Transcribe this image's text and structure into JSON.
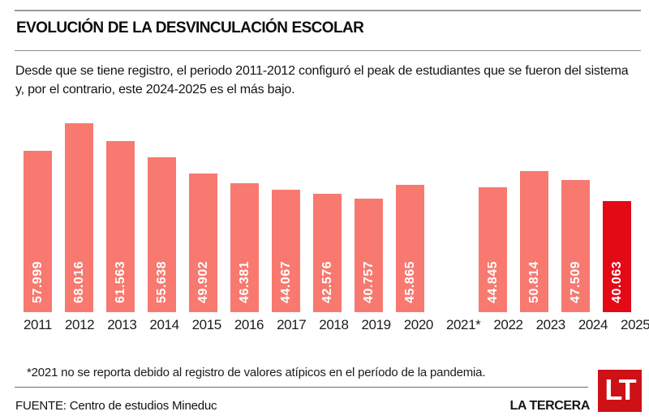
{
  "header": {
    "title": "EVOLUCIÓN DE LA DESVINCULACIÓN ESCOLAR",
    "subtitle": "Desde que se tiene registro, el periodo 2011-2012 configuró el peak de estudiantes que se fueron del sistema y, por el contrario, este 2024-2025 es el más bajo."
  },
  "chart_data": {
    "type": "bar",
    "categories": [
      "2011",
      "2012",
      "2013",
      "2014",
      "2015",
      "2016",
      "2017",
      "2018",
      "2019",
      "2020",
      "2021*",
      "2022",
      "2023",
      "2024",
      "2025"
    ],
    "values": [
      57999,
      68016,
      61563,
      55638,
      49902,
      46381,
      44067,
      42576,
      40757,
      45865,
      null,
      44845,
      50814,
      47509,
      40063
    ],
    "value_labels": [
      "57.999",
      "68.016",
      "61.563",
      "55.638",
      "49.902",
      "46.381",
      "44.067",
      "42.576",
      "40.757",
      "45.865",
      "",
      "44.845",
      "50.814",
      "47.509",
      "40.063"
    ],
    "title": "EVOLUCIÓN DE LA DESVINCULACIÓN ESCOLAR",
    "xlabel": "",
    "ylabel": "",
    "ylim": [
      0,
      68016
    ],
    "grid": false,
    "legend": "none",
    "bar_color": "#f7796f",
    "highlight_color": "#e30915",
    "highlight_index": 14,
    "missing_note_index": 10
  },
  "footnote": "*2021 no se reporta debido al registro de valores atípicos en el período de la pandemia.",
  "footer": {
    "source": "FUENTE: Centro de estudios Mineduc",
    "brand": "LA TERCERA",
    "logo_text": "LT",
    "logo_color": "#ce1017"
  }
}
